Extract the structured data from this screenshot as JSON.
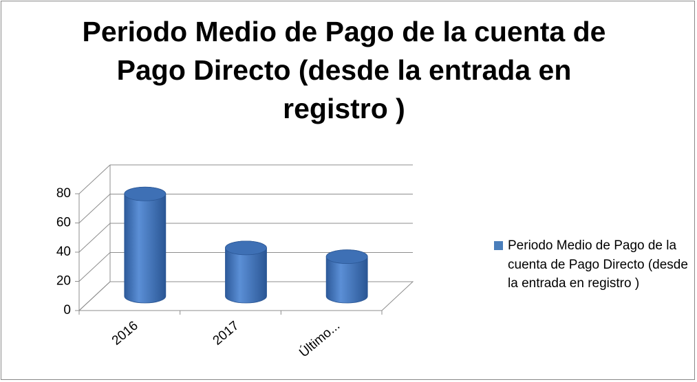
{
  "chart_data": {
    "type": "bar3d",
    "title": "Periodo Medio de Pago de la cuenta de Pago Directo (desde la entrada en registro )",
    "categories": [
      "2016",
      "2017",
      "Último..."
    ],
    "series": [
      {
        "name": "Periodo Medio de Pago de la cuenta de Pago Directo (desde la entrada en registro )",
        "color": "#4a7ebb",
        "values": [
          70,
          33,
          27
        ]
      }
    ],
    "ylim": [
      0,
      80
    ],
    "yticks": [
      0,
      20,
      40,
      60,
      80
    ],
    "grid": true,
    "legend": "right"
  }
}
